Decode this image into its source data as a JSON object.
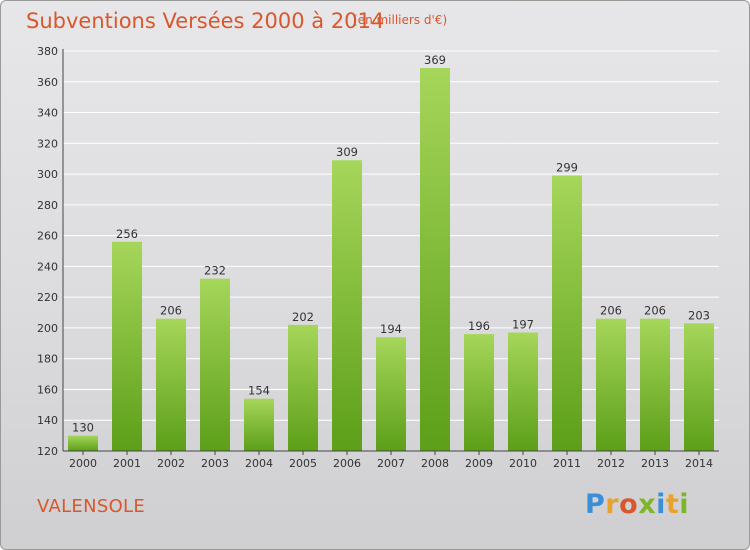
{
  "title": "Subventions Versées 2000 à 2014",
  "subtitle": "(en milliers d'€)",
  "place": "VALENSOLE",
  "logo": {
    "letters": [
      "P",
      "r",
      "o",
      "x",
      "i",
      "t",
      "i"
    ],
    "colors": [
      "#3a8fd6",
      "#e9a22a",
      "#d9572b",
      "#7fb629",
      "#3a8fd6",
      "#e9a22a",
      "#7fb629"
    ]
  },
  "colors": {
    "bar_light": "#a6d65a",
    "bar_dark": "#5c9f19",
    "grid": "#ffffff"
  },
  "chart_data": {
    "type": "bar",
    "categories": [
      "2000",
      "2001",
      "2002",
      "2003",
      "2004",
      "2005",
      "2006",
      "2007",
      "2008",
      "2009",
      "2010",
      "2011",
      "2012",
      "2013",
      "2014"
    ],
    "values": [
      130,
      256,
      206,
      232,
      154,
      202,
      309,
      194,
      369,
      196,
      197,
      299,
      206,
      206,
      203
    ],
    "data_labels": [
      "130",
      "256",
      "206",
      "232",
      "154",
      "202",
      "309",
      "194",
      "369",
      "196",
      "197",
      "299",
      "206",
      "206",
      "203"
    ],
    "y_ticks": [
      120,
      140,
      160,
      180,
      200,
      220,
      240,
      260,
      280,
      300,
      320,
      340,
      360,
      380
    ],
    "ylim": [
      120,
      380
    ],
    "grid": true
  }
}
